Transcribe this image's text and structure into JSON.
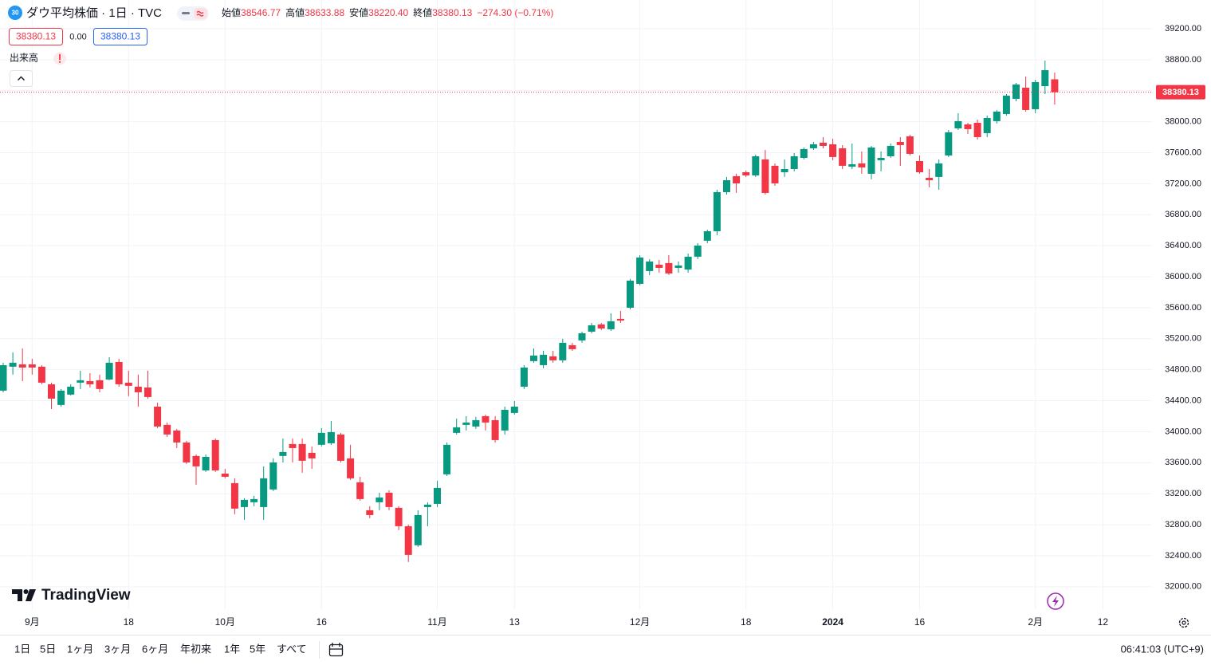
{
  "header": {
    "badge": "30",
    "title": "ダウ平均株価 · 1日 · TVC",
    "ohlc": [
      {
        "label": "始値",
        "value": "38546.77"
      },
      {
        "label": "高値",
        "value": "38633.88"
      },
      {
        "label": "安値",
        "value": "38220.40"
      },
      {
        "label": "終値",
        "value": "38380.13"
      }
    ],
    "change": "−274.30 (−0.71%)",
    "bid": "38380.13",
    "spread": "0.00",
    "ask": "38380.13",
    "indicator": "出来高",
    "logo": "TradingView"
  },
  "toolbar": {
    "ranges": [
      "1日",
      "5日",
      "1ヶ月",
      "3ヶ月",
      "6ヶ月",
      "年初来",
      "1年",
      "5年",
      "すべて"
    ],
    "clock": "06:41:03 (UTC+9)"
  },
  "chart_data": {
    "type": "candlestick",
    "categories": [
      null,
      null,
      null,
      "9月",
      null,
      null,
      null,
      null,
      null,
      null,
      null,
      null,
      null,
      "18",
      null,
      null,
      null,
      null,
      null,
      null,
      null,
      null,
      null,
      "10月",
      null,
      null,
      null,
      null,
      null,
      null,
      null,
      null,
      null,
      "16",
      null,
      null,
      null,
      null,
      null,
      null,
      null,
      null,
      null,
      null,
      null,
      "11月",
      null,
      null,
      null,
      null,
      null,
      null,
      null,
      "13",
      null,
      null,
      null,
      null,
      null,
      null,
      null,
      null,
      null,
      null,
      null,
      null,
      "12月",
      null,
      null,
      null,
      null,
      null,
      null,
      null,
      null,
      null,
      null,
      "18",
      null,
      null,
      null,
      null,
      null,
      null,
      null,
      null,
      "2024",
      null,
      null,
      null,
      null,
      null,
      null,
      null,
      null,
      "16",
      null,
      null,
      null,
      null,
      null,
      null,
      null,
      null,
      null,
      null,
      null,
      "2月",
      null,
      null,
      null,
      null,
      null,
      null,
      "12",
      null,
      null,
      null,
      null,
      null
    ],
    "open": [
      34530,
      34839,
      34869,
      34869,
      34839,
      34612,
      34345,
      34479,
      34633,
      34653,
      34664,
      34674,
      34900,
      34633,
      34581,
      34571,
      34324,
      34088,
      34016,
      33861,
      33687,
      33501,
      33892,
      33460,
      33337,
      33028,
      33090,
      33028,
      33255,
      33687,
      33841,
      33841,
      33728,
      33831,
      33851,
      33964,
      33656,
      33347,
      32987,
      33090,
      33213,
      33018,
      32781,
      32535,
      33028,
      33069,
      33450,
      33985,
      34088,
      34067,
      34201,
      34149,
      34016,
      34242,
      34581,
      34911,
      34859,
      34972,
      34921,
      35116,
      35178,
      35291,
      35384,
      35322,
      35456,
      35600,
      35908,
      36073,
      36155,
      36176,
      36114,
      36093,
      36258,
      36464,
      36587,
      37091,
      37297,
      37348,
      37307,
      37513,
      37431,
      37348,
      37389,
      37533,
      37657,
      37729,
      37708,
      37657,
      37420,
      37461,
      37328,
      37503,
      37554,
      37739,
      37811,
      37492,
      37276,
      37287,
      37564,
      37914,
      37965,
      37986,
      37852,
      38007,
      38099,
      38295,
      38439,
      38161,
      38459,
      38546.77,
      null,
      null,
      null,
      null,
      null,
      null,
      null,
      null,
      null,
      null
    ],
    "high": [
      34890,
      35024,
      35075,
      34941,
      34859,
      34633,
      34551,
      34612,
      34787,
      34756,
      34736,
      34962,
      34941,
      34787,
      34736,
      34787,
      34376,
      34119,
      34036,
      33882,
      33707,
      33707,
      33913,
      33522,
      33399,
      33141,
      33172,
      33553,
      33656,
      33913,
      33913,
      33913,
      33810,
      34047,
      34139,
      33985,
      33831,
      33419,
      33039,
      33213,
      33244,
      33039,
      32802,
      32987,
      33090,
      33368,
      33861,
      34170,
      34201,
      34191,
      34221,
      34201,
      34324,
      34396,
      34859,
      35075,
      35044,
      35044,
      35199,
      35147,
      35291,
      35404,
      35404,
      35528,
      35559,
      35970,
      36279,
      36227,
      36217,
      36279,
      36196,
      36299,
      36433,
      36608,
      37122,
      37287,
      37328,
      37369,
      37575,
      37636,
      37461,
      37513,
      37595,
      37667,
      37739,
      37801,
      37780,
      37698,
      37719,
      37616,
      37688,
      37616,
      37719,
      37801,
      37832,
      37564,
      37389,
      37513,
      37893,
      38109,
      37986,
      38027,
      38079,
      38151,
      38356,
      38500,
      38583,
      38541,
      38788,
      38633.88,
      null,
      null,
      null,
      null,
      null,
      null,
      null,
      null,
      null,
      null
    ],
    "low": [
      34509,
      34736,
      34653,
      34736,
      34612,
      34293,
      34324,
      34468,
      34551,
      34571,
      34509,
      34664,
      34581,
      34458,
      34324,
      34427,
      34047,
      33933,
      33789,
      33584,
      33316,
      33481,
      33481,
      33399,
      32936,
      32864,
      33039,
      32864,
      33234,
      33604,
      33604,
      33471,
      33522,
      33810,
      33831,
      33604,
      33378,
      33111,
      32884,
      32987,
      32987,
      32730,
      32319,
      32514,
      32781,
      33028,
      33429,
      33964,
      34016,
      34036,
      34016,
      33861,
      33964,
      34221,
      34551,
      34890,
      34818,
      34890,
      34890,
      35044,
      35147,
      35271,
      35312,
      35301,
      35404,
      35579,
      35888,
      36021,
      36052,
      36021,
      36052,
      36052,
      36227,
      36433,
      36536,
      37060,
      37081,
      37287,
      37287,
      37060,
      37173,
      37287,
      37359,
      37513,
      37636,
      37657,
      37503,
      37389,
      37389,
      37328,
      37256,
      37359,
      37533,
      37431,
      37564,
      37328,
      37153,
      37122,
      37544,
      37893,
      37842,
      37770,
      37801,
      37976,
      38079,
      38264,
      38130,
      38109,
      38356,
      38220.4,
      null,
      null,
      null,
      null,
      null,
      null,
      null,
      null,
      null,
      null
    ],
    "close": [
      34859,
      34890,
      34828,
      34828,
      34633,
      34427,
      34530,
      34581,
      34664,
      34612,
      34551,
      34890,
      34612,
      34592,
      34509,
      34448,
      34067,
      33964,
      33861,
      33604,
      33553,
      33676,
      33501,
      33419,
      33008,
      33121,
      33131,
      33399,
      33604,
      33738,
      33789,
      33625,
      33656,
      33985,
      33995,
      33625,
      33399,
      33131,
      32925,
      33152,
      33028,
      32781,
      32411,
      32925,
      33059,
      33275,
      33831,
      34057,
      34119,
      34149,
      34119,
      33892,
      34283,
      34324,
      34828,
      34983,
      34993,
      34921,
      35147,
      35065,
      35271,
      35373,
      35332,
      35425,
      35435,
      35949,
      36248,
      36196,
      36114,
      36042,
      36145,
      36258,
      36402,
      36587,
      37091,
      37245,
      37204,
      37307,
      37554,
      37081,
      37204,
      37389,
      37554,
      37647,
      37708,
      37688,
      37544,
      37431,
      37451,
      37410,
      37667,
      37533,
      37688,
      37698,
      37585,
      37348,
      37245,
      37461,
      37863,
      38007,
      37904,
      37801,
      38048,
      38130,
      38336,
      38480,
      38151,
      38511,
      38665,
      38380.13,
      null,
      null,
      null,
      null,
      null,
      null,
      null,
      null,
      null,
      null
    ],
    "up_color": "#089981",
    "down_color": "#f23645",
    "last_label": "38380.13",
    "ylim": [
      31700,
      39570
    ],
    "yticks": [
      {
        "value": 32000,
        "label": "32000.00"
      },
      {
        "value": 32400,
        "label": "32400.00"
      },
      {
        "value": 32800,
        "label": "32800.00"
      },
      {
        "value": 33200,
        "label": "33200.00"
      },
      {
        "value": 33600,
        "label": "33600.00"
      },
      {
        "value": 34000,
        "label": "34000.00"
      },
      {
        "value": 34400,
        "label": "34400.00"
      },
      {
        "value": 34800,
        "label": "34800.00"
      },
      {
        "value": 35200,
        "label": "35200.00"
      },
      {
        "value": 35600,
        "label": "35600.00"
      },
      {
        "value": 36000,
        "label": "36000.00"
      },
      {
        "value": 36400,
        "label": "36400.00"
      },
      {
        "value": 36800,
        "label": "36800.00"
      },
      {
        "value": 37200,
        "label": "37200.00"
      },
      {
        "value": 37600,
        "label": "37600.00"
      },
      {
        "value": 38000,
        "label": "38000.00"
      },
      {
        "value": 38400,
        "label": "38400.00"
      },
      {
        "value": 38800,
        "label": "38800.00"
      },
      {
        "value": 39200,
        "label": "39200.00"
      }
    ],
    "grid": true
  }
}
